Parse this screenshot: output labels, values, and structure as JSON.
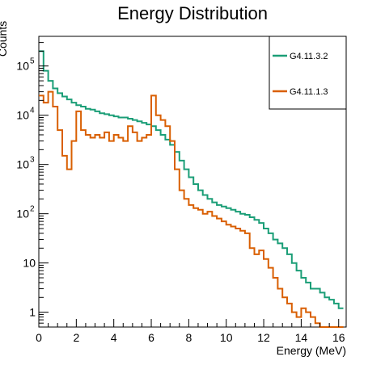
{
  "chart_data": {
    "type": "line",
    "title": "Energy Distribution",
    "xlabel": "Energy (MeV)",
    "ylabel": "Counts",
    "xlim": [
      0,
      16.4
    ],
    "ylim": [
      0.5,
      400000
    ],
    "yscale": "log",
    "grid": false,
    "legend_position": "top-right",
    "x_ticks": [
      {
        "value": 0,
        "label": "0"
      },
      {
        "value": 2,
        "label": "2"
      },
      {
        "value": 4,
        "label": "4"
      },
      {
        "value": 6,
        "label": "6"
      },
      {
        "value": 8,
        "label": "8"
      },
      {
        "value": 10,
        "label": "10"
      },
      {
        "value": 12,
        "label": "12"
      },
      {
        "value": 14,
        "label": "14"
      },
      {
        "value": 16,
        "label": "16"
      }
    ],
    "y_ticks": [
      {
        "value": 1,
        "base": "1",
        "exp": ""
      },
      {
        "value": 10,
        "base": "10",
        "exp": ""
      },
      {
        "value": 100,
        "base": "10",
        "exp": "2"
      },
      {
        "value": 1000,
        "base": "10",
        "exp": "3"
      },
      {
        "value": 10000,
        "base": "10",
        "exp": "4"
      },
      {
        "value": 100000,
        "base": "10",
        "exp": "5"
      }
    ],
    "series": [
      {
        "name": "G4.11.3.2",
        "color": "#1b9e77",
        "x": [
          0,
          0.25,
          0.5,
          0.75,
          1,
          1.25,
          1.5,
          1.75,
          2,
          2.25,
          2.5,
          2.75,
          3,
          3.25,
          3.5,
          3.75,
          4,
          4.25,
          4.5,
          4.75,
          5,
          5.25,
          5.5,
          5.75,
          6,
          6.25,
          6.5,
          6.75,
          7,
          7.25,
          7.5,
          7.75,
          8,
          8.25,
          8.5,
          8.75,
          9,
          9.25,
          9.5,
          9.75,
          10,
          10.25,
          10.5,
          10.75,
          11,
          11.25,
          11.5,
          11.75,
          12,
          12.25,
          12.5,
          12.75,
          13,
          13.25,
          13.5,
          13.75,
          14,
          14.25,
          14.5,
          14.75,
          15,
          15.25,
          15.5,
          15.75,
          16
        ],
        "values": [
          200000,
          80000,
          50000,
          35000,
          28000,
          24000,
          21000,
          18000,
          16000,
          15000,
          13500,
          13000,
          12000,
          11000,
          10500,
          10000,
          9500,
          9000,
          9000,
          8500,
          8000,
          7500,
          7000,
          6500,
          6000,
          5000,
          4000,
          3200,
          2500,
          1800,
          1200,
          800,
          550,
          400,
          300,
          240,
          200,
          170,
          150,
          140,
          130,
          120,
          110,
          100,
          95,
          85,
          75,
          65,
          50,
          40,
          30,
          25,
          20,
          15,
          10,
          7,
          5,
          4,
          3,
          3,
          2.5,
          2,
          1.8,
          1.5,
          1.2
        ]
      },
      {
        "name": "G4.11.1.3",
        "color": "#d95f02",
        "x": [
          0,
          0.25,
          0.5,
          0.75,
          1,
          1.25,
          1.5,
          1.75,
          2,
          2.25,
          2.5,
          2.75,
          3,
          3.25,
          3.5,
          3.75,
          4,
          4.25,
          4.5,
          4.75,
          5,
          5.25,
          5.5,
          5.75,
          6,
          6.25,
          6.5,
          6.75,
          7,
          7.25,
          7.5,
          7.75,
          8,
          8.25,
          8.5,
          8.75,
          9,
          9.25,
          9.5,
          9.75,
          10,
          10.25,
          10.5,
          10.75,
          11,
          11.25,
          11.5,
          11.75,
          12,
          12.25,
          12.5,
          12.75,
          13,
          13.25,
          13.5,
          13.75,
          14,
          14.25,
          14.5,
          14.75,
          15,
          15.25,
          15.5,
          15.75,
          16
        ],
        "values": [
          25000,
          18000,
          30000,
          15000,
          5000,
          1500,
          800,
          3000,
          12000,
          5000,
          4000,
          3500,
          4000,
          3500,
          4500,
          3000,
          4000,
          3500,
          3000,
          6000,
          4500,
          3000,
          3500,
          4000,
          25000,
          10000,
          8000,
          6000,
          3000,
          800,
          300,
          200,
          150,
          130,
          120,
          100,
          110,
          90,
          80,
          70,
          60,
          55,
          50,
          45,
          40,
          20,
          15,
          18,
          12,
          8,
          5,
          3,
          2,
          1.5,
          1,
          0.8,
          1.2,
          1,
          0.8,
          0.6,
          0.5,
          0.5,
          0.5,
          0.5,
          0.5
        ]
      }
    ]
  }
}
